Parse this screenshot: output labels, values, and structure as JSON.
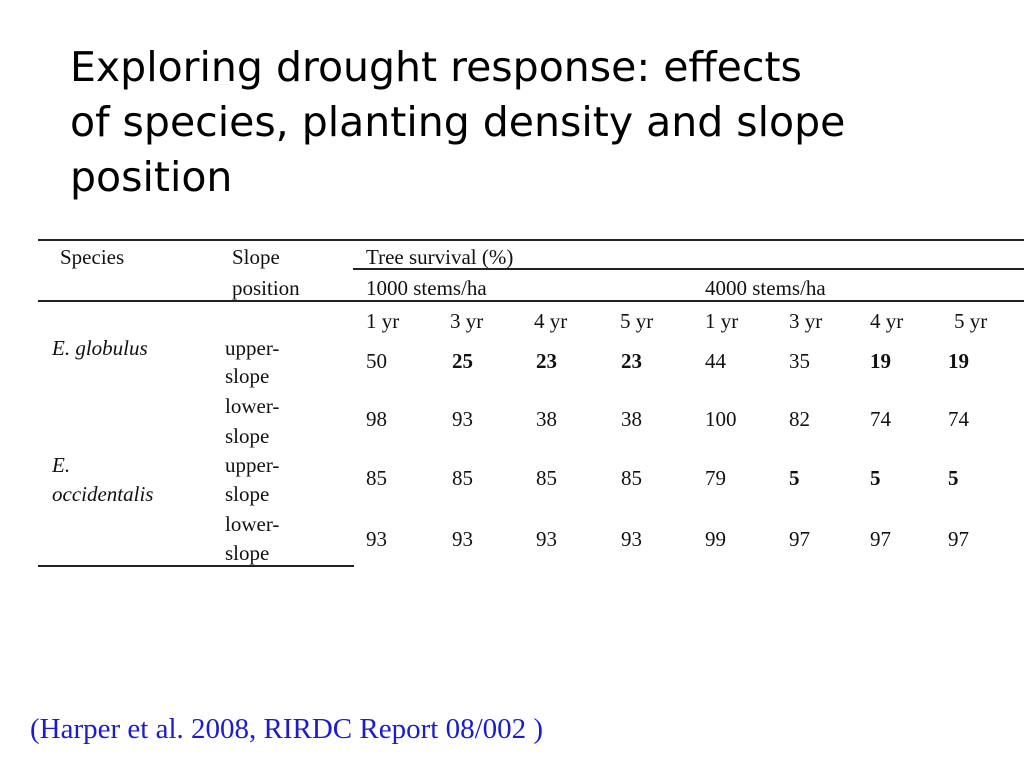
{
  "title_lines": [
    "Exploring drought response: effects",
    "of species, planting density and slope",
    "position"
  ],
  "table": {
    "headers": {
      "species": "Species",
      "slope_line1": "Slope",
      "slope_line2": "position",
      "survival": "Tree survival (%)",
      "density_1000": "1000 stems/ha",
      "density_4000": "4000 stems/ha",
      "years": [
        "1 yr",
        "3 yr",
        "4 yr",
        "5 yr",
        "1 yr",
        "3 yr",
        "4 yr",
        "5 yr"
      ]
    },
    "species": [
      {
        "name_lines": [
          "E. globulus"
        ]
      },
      {
        "name_lines": [
          "E.",
          "occidentalis"
        ]
      }
    ],
    "rows": [
      {
        "slope_lines": [
          "upper-",
          "slope"
        ],
        "values": [
          "50",
          "25",
          "23",
          "23",
          "44",
          "35",
          "19",
          "19"
        ],
        "bold": [
          false,
          true,
          true,
          true,
          false,
          false,
          true,
          true
        ]
      },
      {
        "slope_lines": [
          "lower-",
          "slope"
        ],
        "values": [
          "98",
          "93",
          "38",
          "38",
          "100",
          "82",
          "74",
          "74"
        ],
        "bold": [
          false,
          false,
          false,
          false,
          false,
          false,
          false,
          false
        ]
      },
      {
        "slope_lines": [
          "upper-",
          "slope"
        ],
        "values": [
          "85",
          "85",
          "85",
          "85",
          "79",
          "5",
          "5",
          "5"
        ],
        "bold": [
          false,
          false,
          false,
          false,
          false,
          true,
          true,
          true
        ]
      },
      {
        "slope_lines": [
          "lower-",
          "slope"
        ],
        "values": [
          "93",
          "93",
          "93",
          "93",
          "99",
          "97",
          "97",
          "97"
        ],
        "bold": [
          false,
          false,
          false,
          false,
          false,
          false,
          false,
          false
        ]
      }
    ]
  },
  "citation": "(Harper et al. 2008, RIRDC Report 08/002 )"
}
